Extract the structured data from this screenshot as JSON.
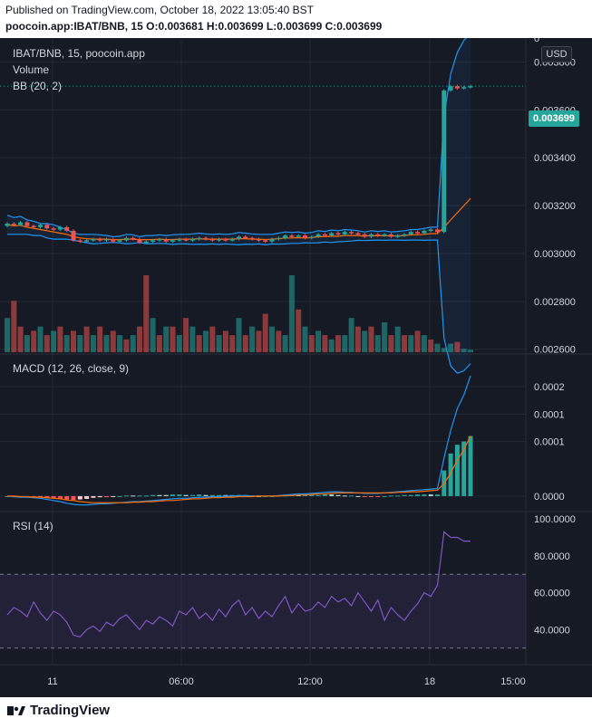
{
  "header": {
    "published": "Published on TradingView.com, October 18, 2022 13:05:40 BST",
    "ohlc": "poocoin.app:IBAT/BNB, 15  O:0.003681  H:0.003699  L:0.003699  C:0.003699"
  },
  "legends": {
    "symbol": "IBAT/BNB, 15, poocoin.app",
    "volume": "Volume",
    "bb": "BB (20, 2)",
    "macd": "MACD (12, 26, close, 9)",
    "rsi": "RSI (14)"
  },
  "currency_button": "USD",
  "last_price": "0.003699",
  "footer": {
    "brand": "TradingView"
  },
  "colors": {
    "background": "#161a25",
    "up": "#26a69a",
    "down": "#ef5350",
    "bb": "#2962ff",
    "macd": "#2196f3",
    "signal": "#ff6d00",
    "rsi": "#7e57c2"
  },
  "chart_data": [
    {
      "type": "line",
      "name": "price",
      "ylim": [
        0.00258,
        0.0039
      ],
      "y_ticks": [
        "0",
        "0.003800",
        "0.003600",
        "0.003400",
        "0.003200",
        "0.003000",
        "0.002800",
        "0.002600"
      ],
      "x_ticks": [
        "11",
        "06:00",
        "12:00",
        "18",
        "15:00"
      ],
      "close": [
        0.003125,
        0.00312,
        0.00313,
        0.003115,
        0.00311,
        0.00312,
        0.003105,
        0.0031,
        0.00311,
        0.003095,
        0.003055,
        0.00305,
        0.003055,
        0.00306,
        0.003055,
        0.00306,
        0.00305,
        0.003055,
        0.003065,
        0.00306,
        0.003045,
        0.00305,
        0.003055,
        0.00306,
        0.00305,
        0.003055,
        0.00306,
        0.003055,
        0.00306,
        0.003065,
        0.00306,
        0.003055,
        0.00306,
        0.003055,
        0.00306,
        0.00307,
        0.003065,
        0.00306,
        0.003055,
        0.00305,
        0.00306,
        0.003065,
        0.003075,
        0.00307,
        0.003075,
        0.003065,
        0.00307,
        0.00308,
        0.003075,
        0.003085,
        0.00308,
        0.00309,
        0.003085,
        0.00308,
        0.00307,
        0.00308,
        0.003075,
        0.00308,
        0.00307,
        0.003075,
        0.00308,
        0.00309,
        0.003085,
        0.003095,
        0.0031,
        0.00309,
        0.003681,
        0.003699,
        0.00369,
        0.003695,
        0.003699
      ],
      "bb_upper": [
        0.00316,
        0.00315,
        0.003155,
        0.00314,
        0.003135,
        0.003125,
        0.003125,
        0.00312,
        0.00311,
        0.0031,
        0.003085,
        0.00308,
        0.00308,
        0.00308,
        0.003078,
        0.003075,
        0.00307,
        0.003072,
        0.00308,
        0.003078,
        0.00307,
        0.003075,
        0.003075,
        0.003078,
        0.003075,
        0.003078,
        0.00308,
        0.00308,
        0.003082,
        0.003085,
        0.003082,
        0.00308,
        0.003082,
        0.00308,
        0.003082,
        0.003088,
        0.003085,
        0.003082,
        0.00308,
        0.00308,
        0.00308,
        0.003085,
        0.00309,
        0.003088,
        0.00309,
        0.003085,
        0.003088,
        0.003095,
        0.003092,
        0.003098,
        0.003095,
        0.0031,
        0.003098,
        0.003095,
        0.00309,
        0.003095,
        0.003092,
        0.003095,
        0.00309,
        0.003092,
        0.003095,
        0.0031,
        0.0031,
        0.003105,
        0.00311,
        0.00311,
        0.003575,
        0.00375,
        0.00384,
        0.00389,
        0.00392
      ],
      "bb_basis": [
        0.00312,
        0.003115,
        0.003118,
        0.00311,
        0.003105,
        0.0031,
        0.003095,
        0.00309,
        0.003085,
        0.00308,
        0.00307,
        0.003065,
        0.003062,
        0.00306,
        0.00306,
        0.00306,
        0.003058,
        0.003058,
        0.00306,
        0.00306,
        0.003058,
        0.003058,
        0.003058,
        0.00306,
        0.003058,
        0.003058,
        0.00306,
        0.00306,
        0.00306,
        0.003062,
        0.00306,
        0.00306,
        0.00306,
        0.00306,
        0.00306,
        0.003062,
        0.003062,
        0.00306,
        0.00306,
        0.003058,
        0.00306,
        0.003062,
        0.003065,
        0.003065,
        0.003066,
        0.003065,
        0.003066,
        0.00307,
        0.00307,
        0.003072,
        0.003072,
        0.003075,
        0.003075,
        0.003075,
        0.003072,
        0.003075,
        0.003074,
        0.003075,
        0.003073,
        0.003074,
        0.003075,
        0.003078,
        0.003078,
        0.00308,
        0.003083,
        0.003083,
        0.00311,
        0.00314,
        0.00317,
        0.0032,
        0.00323
      ],
      "bb_lower": [
        0.00308,
        0.00308,
        0.00308,
        0.00308,
        0.003075,
        0.003075,
        0.003065,
        0.00306,
        0.00306,
        0.00306,
        0.003055,
        0.00305,
        0.003045,
        0.00304,
        0.003042,
        0.003045,
        0.003046,
        0.003044,
        0.00304,
        0.003042,
        0.003046,
        0.003041,
        0.003041,
        0.003042,
        0.003041,
        0.003038,
        0.00304,
        0.00304,
        0.003038,
        0.003039,
        0.003038,
        0.00304,
        0.003038,
        0.00304,
        0.003038,
        0.003036,
        0.003039,
        0.003038,
        0.00304,
        0.003036,
        0.00304,
        0.003039,
        0.00304,
        0.003042,
        0.003042,
        0.003045,
        0.003044,
        0.003045,
        0.003048,
        0.003046,
        0.003049,
        0.00305,
        0.003052,
        0.003055,
        0.003054,
        0.003055,
        0.003056,
        0.003055,
        0.003056,
        0.003056,
        0.003055,
        0.003056,
        0.003056,
        0.003055,
        0.003056,
        0.003056,
        0.002645,
        0.00253,
        0.0025,
        0.00251,
        0.00254
      ]
    },
    {
      "type": "bar",
      "name": "volume",
      "values": [
        4,
        6,
        3,
        2,
        2.5,
        3,
        2,
        2.5,
        3,
        2,
        2.5,
        2,
        3,
        2,
        3,
        2,
        2.5,
        2,
        1.5,
        2,
        3,
        9,
        4,
        2,
        3,
        3,
        2,
        4,
        3,
        2,
        2.5,
        3,
        2,
        2.5,
        2,
        4,
        2,
        3,
        2.5,
        4.5,
        3,
        2.5,
        2,
        9,
        5,
        3,
        2,
        2.5,
        2,
        1.5,
        2,
        2,
        4,
        3,
        2.5,
        3,
        2,
        3.5,
        2,
        3,
        2,
        2,
        2.5,
        2,
        1.5,
        1,
        0.5,
        1,
        1.2,
        0.4,
        0.3
      ],
      "up": [
        1,
        0,
        0,
        1,
        0,
        1,
        0,
        1,
        0,
        1,
        0,
        1,
        0,
        1,
        0,
        1,
        0,
        1,
        0,
        1,
        0,
        0,
        1,
        0,
        1,
        0,
        1,
        0,
        1,
        0,
        1,
        0,
        1,
        0,
        0,
        1,
        0,
        1,
        0,
        0,
        1,
        0,
        1,
        1,
        0,
        1,
        0,
        1,
        0,
        1,
        0,
        1,
        1,
        0,
        1,
        0,
        1,
        1,
        0,
        1,
        0,
        1,
        0,
        1,
        0,
        1,
        1,
        1,
        0,
        1,
        1
      ]
    },
    {
      "type": "line",
      "name": "macd",
      "ylim": [
        -2e-05,
        0.00025
      ],
      "y_ticks": [
        "0.0002",
        "0.0001",
        "0.0001",
        "0.0000"
      ],
      "macd": [
        0,
        -1e-06,
        -2e-06,
        -2e-06,
        -3e-06,
        -4e-06,
        -6e-06,
        -8e-06,
        -1e-05,
        -1.3e-05,
        -1.5e-05,
        -1.6e-05,
        -1.6e-05,
        -1.5e-05,
        -1.4e-05,
        -1.4e-05,
        -1.3e-05,
        -1.2e-05,
        -1.1e-05,
        -1e-05,
        -1e-05,
        -9e-06,
        -8e-06,
        -7e-06,
        -6e-06,
        -5e-06,
        -4e-06,
        -4e-06,
        -3e-06,
        -2e-06,
        -2e-06,
        -1e-06,
        -1e-06,
        0,
        0,
        1e-06,
        1e-06,
        0,
        0,
        0,
        0,
        1e-06,
        2e-06,
        3e-06,
        4e-06,
        4e-06,
        5e-06,
        6e-06,
        7e-06,
        8e-06,
        8e-06,
        7e-06,
        7e-06,
        6e-06,
        5e-06,
        5e-06,
        5e-06,
        6e-06,
        7e-06,
        8e-06,
        9e-06,
        1e-05,
        1.1e-05,
        1.2e-05,
        1.3e-05,
        1.4e-05,
        7e-05,
        0.00012,
        0.00016,
        0.000185,
        0.00022
      ],
      "signal": [
        0,
        0,
        -1e-06,
        -1e-06,
        -2e-06,
        -2e-06,
        -3e-06,
        -4e-06,
        -5e-06,
        -7e-06,
        -8e-06,
        -1e-05,
        -1.1e-05,
        -1.2e-05,
        -1.2e-05,
        -1.2e-05,
        -1.2e-05,
        -1.2e-05,
        -1.2e-05,
        -1.1e-05,
        -1.1e-05,
        -1e-05,
        -1e-05,
        -9e-06,
        -8e-06,
        -8e-06,
        -7e-06,
        -6e-06,
        -5e-06,
        -5e-06,
        -4e-06,
        -3e-06,
        -3e-06,
        -2e-06,
        -2e-06,
        -1e-06,
        -1e-06,
        -1e-06,
        0,
        0,
        0,
        0,
        1e-06,
        1e-06,
        2e-06,
        2e-06,
        3e-06,
        4e-06,
        4e-06,
        5e-06,
        6e-06,
        6e-06,
        6e-06,
        6e-06,
        6e-06,
        6e-06,
        6e-06,
        6e-06,
        6e-06,
        7e-06,
        7e-06,
        8e-06,
        8e-06,
        9e-06,
        1e-05,
        1.1e-05,
        2.3e-05,
        4.2e-05,
        6.6e-05,
        8.5e-05,
        0.00011
      ]
    },
    {
      "type": "line",
      "name": "rsi",
      "ylim": [
        22,
        103
      ],
      "y_ticks": [
        "100.0000",
        "80.0000",
        "60.0000",
        "40.0000"
      ],
      "bands": [
        70,
        30
      ],
      "values": [
        48,
        52,
        50,
        47,
        55,
        49,
        45,
        50,
        48,
        44,
        37,
        36,
        40,
        42,
        39,
        44,
        42,
        46,
        48,
        44,
        40,
        45,
        43,
        47,
        45,
        42,
        50,
        48,
        52,
        46,
        49,
        45,
        51,
        47,
        53,
        56,
        48,
        52,
        46,
        50,
        47,
        53,
        58,
        49,
        54,
        50,
        51,
        55,
        52,
        58,
        55,
        57,
        53,
        60,
        55,
        50,
        56,
        45,
        52,
        48,
        45,
        50,
        54,
        60,
        58,
        64,
        93,
        90,
        90,
        88,
        88
      ]
    }
  ]
}
